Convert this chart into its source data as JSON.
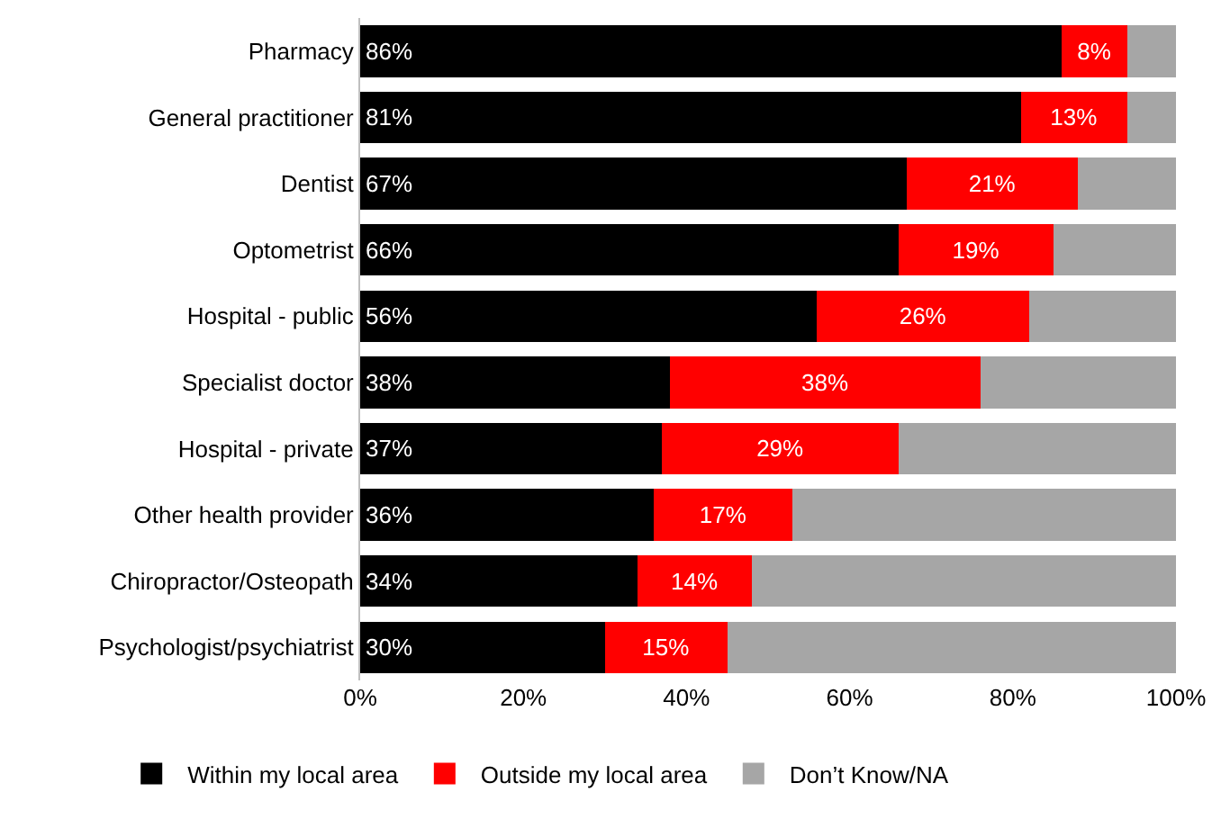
{
  "chart_data": {
    "type": "bar",
    "orientation": "horizontal",
    "stacked": true,
    "categories": [
      "Pharmacy",
      "General practitioner",
      "Dentist",
      "Optometrist",
      "Hospital - public",
      "Specialist doctor",
      "Hospital - private",
      "Other health provider",
      "Chiropractor/Osteopath",
      "Psychologist/psychiatrist"
    ],
    "series": [
      {
        "name": "Within my local area",
        "color": "#000000",
        "values": [
          86,
          81,
          67,
          66,
          56,
          38,
          37,
          36,
          34,
          30
        ],
        "value_labels": [
          "86%",
          "81%",
          "67%",
          "66%",
          "56%",
          "38%",
          "37%",
          "36%",
          "34%",
          "30%"
        ]
      },
      {
        "name": "Outside my local area",
        "color": "#ff0000",
        "values": [
          8,
          13,
          21,
          19,
          26,
          38,
          29,
          17,
          14,
          15
        ],
        "value_labels": [
          "8%",
          "13%",
          "21%",
          "19%",
          "26%",
          "38%",
          "29%",
          "17%",
          "14%",
          "15%"
        ]
      },
      {
        "name": "Don’t Know/NA",
        "color": "#a6a6a6",
        "values": [
          6,
          6,
          12,
          15,
          18,
          24,
          34,
          47,
          52,
          55
        ]
      }
    ],
    "xlim": [
      0,
      100
    ],
    "xticks": [
      {
        "value": 0,
        "label": "0%"
      },
      {
        "value": 20,
        "label": "20%"
      },
      {
        "value": 40,
        "label": "40%"
      },
      {
        "value": 60,
        "label": "60%"
      },
      {
        "value": 80,
        "label": "80%"
      },
      {
        "value": 100,
        "label": "100%"
      }
    ],
    "grid": false,
    "legend": "bottom"
  }
}
